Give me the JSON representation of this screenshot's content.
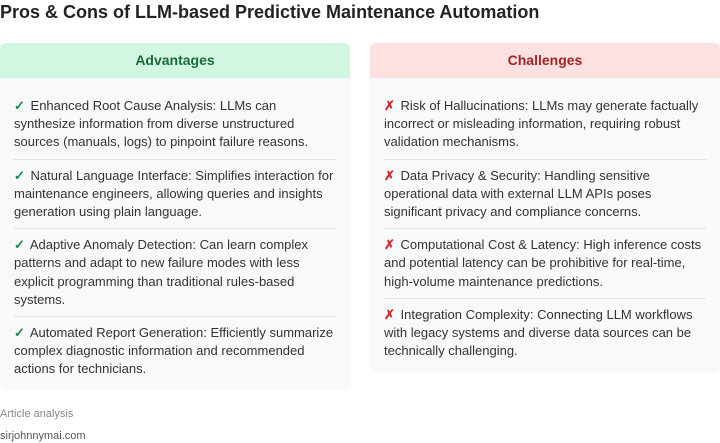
{
  "title": "Pros & Cons of LLM-based Predictive Maintenance Automation",
  "advantages": {
    "heading": "Advantages",
    "mark": "✓",
    "items": [
      "Enhanced Root Cause Analysis: LLMs can synthesize information from diverse unstructured sources (manuals, logs) to pinpoint failure reasons.",
      "Natural Language Interface: Simplifies interaction for maintenance engineers, allowing queries and insights generation using plain language.",
      "Adaptive Anomaly Detection: Can learn complex patterns and adapt to new failure modes with less explicit programming than traditional rules-based systems.",
      "Automated Report Generation: Efficiently summarize complex diagnostic information and recommended actions for technicians."
    ]
  },
  "challenges": {
    "heading": "Challenges",
    "mark": "✗",
    "items": [
      "Risk of Hallucinations: LLMs may generate factually incorrect or misleading information, requiring robust validation mechanisms.",
      "Data Privacy & Security: Handling sensitive operational data with external LLM APIs poses significant privacy and compliance concerns.",
      "Computational Cost & Latency: High inference costs and potential latency can be prohibitive for real-time, high-volume maintenance predictions.",
      "Integration Complexity: Connecting LLM workflows with legacy systems and diverse data sources can be technically challenging."
    ]
  },
  "footer": {
    "source": "Article analysis",
    "site": "sirjohnnymai.com"
  }
}
